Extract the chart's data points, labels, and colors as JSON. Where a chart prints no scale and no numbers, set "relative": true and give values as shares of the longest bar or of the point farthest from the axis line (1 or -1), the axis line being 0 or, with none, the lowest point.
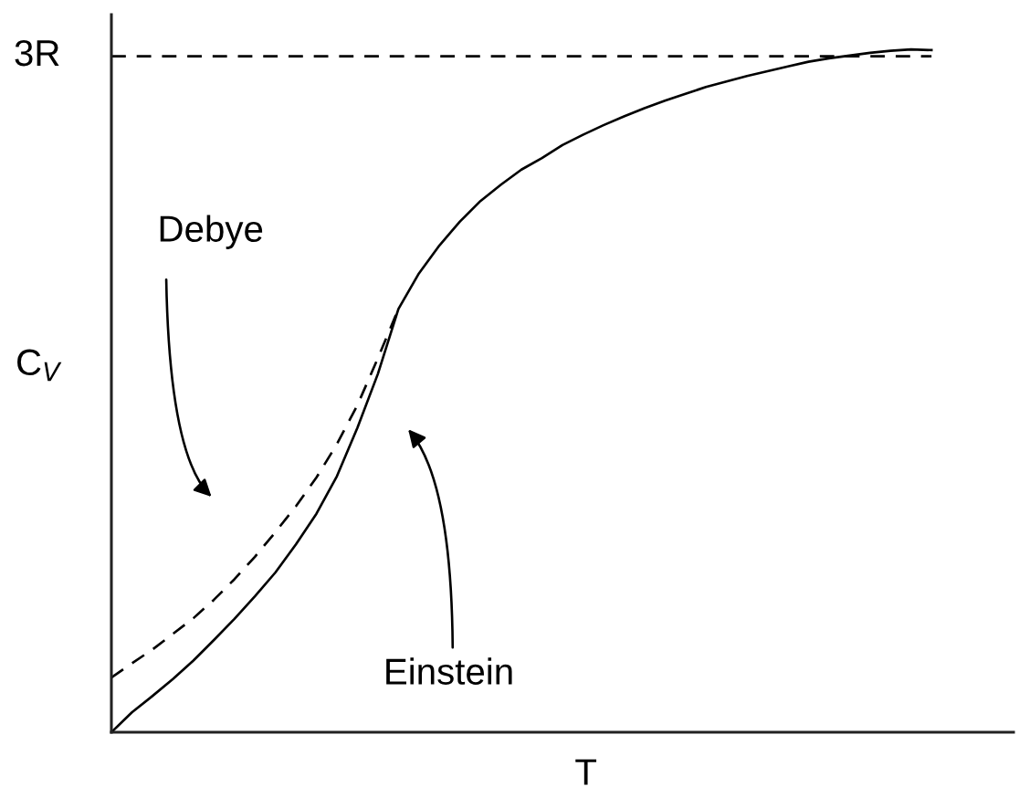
{
  "chart_data": {
    "type": "line",
    "xlabel": "T",
    "ylabel": "C$_{V}$",
    "relative": true,
    "categories": [
      null,
      null,
      null,
      null,
      null,
      null,
      null,
      null,
      null,
      null,
      null,
      null,
      null,
      null,
      null,
      null,
      null,
      null,
      null,
      null,
      null,
      null,
      null,
      null,
      null,
      null,
      null,
      null,
      null,
      null,
      null,
      null,
      null,
      null,
      null,
      null,
      null,
      null,
      null,
      null,
      null
    ],
    "series": [
      {
        "color": "#000000",
        "line_style": "dashed",
        "values": [
          0.08,
          0.101,
          0.121,
          0.144,
          0.167,
          0.194,
          0.224,
          0.257,
          0.293,
          0.331,
          0.373,
          0.422,
          0.479,
          0.548,
          0.62,
          null,
          null,
          null,
          null,
          null,
          null,
          null,
          null,
          null,
          null,
          null,
          null,
          null,
          null,
          null,
          null,
          null,
          null,
          null,
          null,
          null,
          null,
          null,
          null,
          null,
          null
        ]
      },
      {
        "color": "#000000",
        "line_style": "solid",
        "values": [
          0,
          0.029,
          0.053,
          0.078,
          0.105,
          0.135,
          0.166,
          0.199,
          0.234,
          0.275,
          0.32,
          0.375,
          0.446,
          0.525,
          0.62,
          0.672,
          0.713,
          0.748,
          0.778,
          0.802,
          0.824,
          0.841,
          0.86,
          0.875,
          0.889,
          0.902,
          0.914,
          0.925,
          0.935,
          0.945,
          0.953,
          0.961,
          0.968,
          0.975,
          0.982,
          0.987,
          0.991,
          0.995,
          0.998,
          1.0,
          0.999
        ]
      }
    ],
    "ref_lines": [
      {
        "axis": "y",
        "value": 0.99,
        "label": "3R",
        "color": "#000000",
        "line_style": "dashed"
      }
    ],
    "annotations": [
      "Debye",
      "Einstein"
    ]
  }
}
